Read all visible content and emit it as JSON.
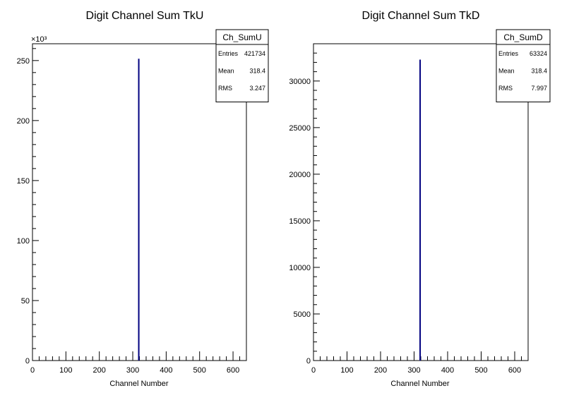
{
  "chart_data": [
    {
      "type": "bar",
      "title": "Digit Channel Sum TkU",
      "xlabel": "Channel Number",
      "ylabel": "",
      "xlim": [
        0,
        640
      ],
      "ylim": [
        0,
        264
      ],
      "y_exponent": "×10³",
      "x_ticks": [
        0,
        100,
        200,
        300,
        400,
        500,
        600
      ],
      "y_ticks": [
        0,
        50,
        100,
        150,
        200,
        250
      ],
      "bins": [
        {
          "x": 318,
          "value": 251.5
        }
      ],
      "line_color": "#000080",
      "stats": {
        "name": "Ch_SumU",
        "rows": [
          {
            "label": "Entries",
            "value": "421734"
          },
          {
            "label": "Mean",
            "value": "318.4"
          },
          {
            "label": "RMS",
            "value": "3.247"
          }
        ]
      }
    },
    {
      "type": "bar",
      "title": "Digit Channel Sum TkD",
      "xlabel": "Channel Number",
      "ylabel": "",
      "xlim": [
        0,
        640
      ],
      "ylim": [
        0,
        34000
      ],
      "y_exponent": "",
      "x_ticks": [
        0,
        100,
        200,
        300,
        400,
        500,
        600
      ],
      "y_ticks": [
        0,
        5000,
        10000,
        15000,
        20000,
        25000,
        30000
      ],
      "bins": [
        {
          "x": 318,
          "value": 32300
        }
      ],
      "line_color": "#000080",
      "stats": {
        "name": "Ch_SumD",
        "rows": [
          {
            "label": "Entries",
            "value": "63324"
          },
          {
            "label": "Mean",
            "value": "318.4"
          },
          {
            "label": "RMS",
            "value": "7.997"
          }
        ]
      }
    }
  ]
}
